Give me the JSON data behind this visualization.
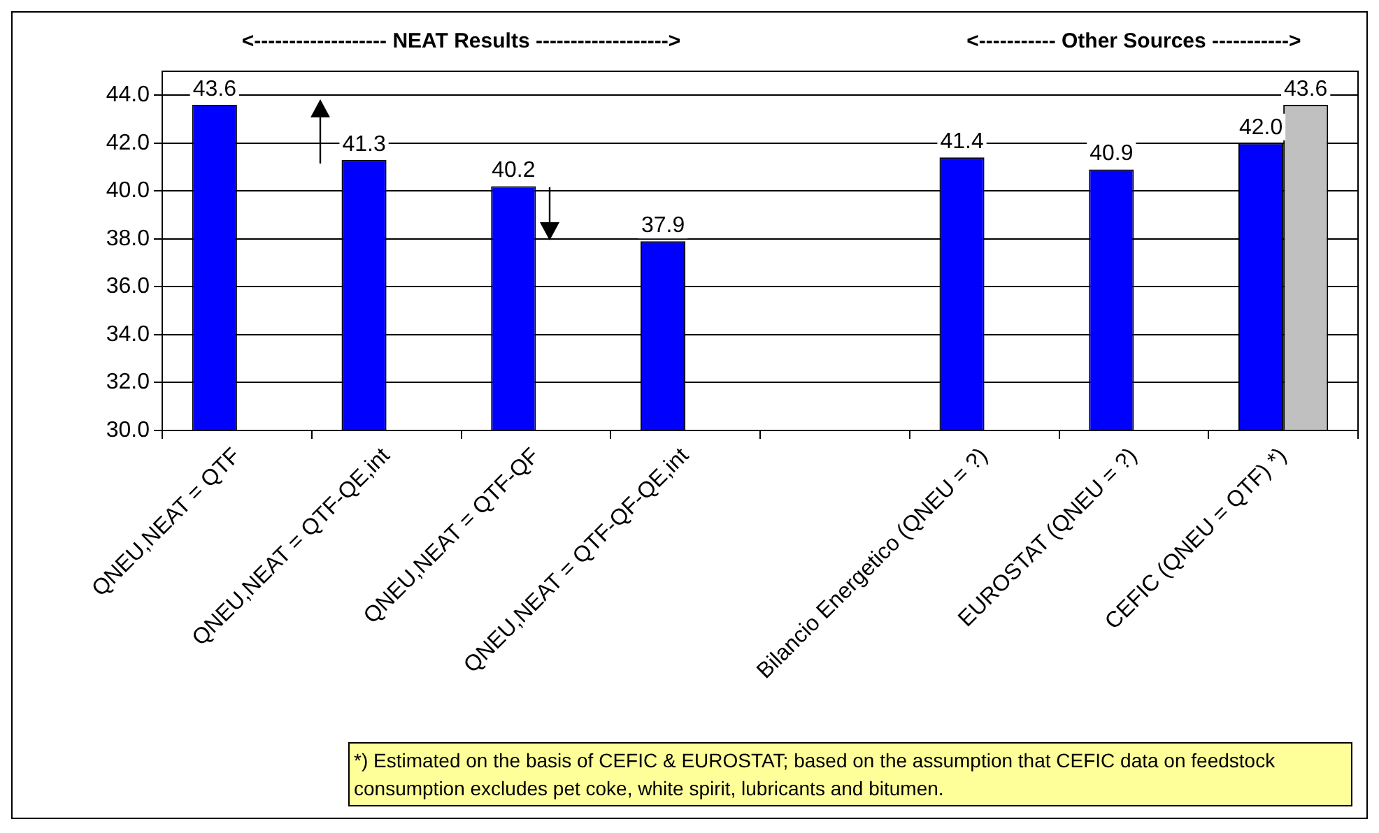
{
  "chart_data": {
    "type": "bar",
    "categories": [
      "QNEU,NEAT = QTF",
      "QNEU,NEAT = QTF-QE,int",
      "QNEU,NEAT = QTF-QF",
      "QNEU,NEAT = QTF-QF-QE,int",
      null,
      "Bilancio Energetico (QNEU = ?)",
      "EUROSTAT (QNEU = ?)",
      "CEFIC (QNEU = QTF) *)"
    ],
    "series": [
      {
        "color": "#0000ff",
        "values": [
          43.6,
          41.3,
          40.2,
          37.9,
          null,
          41.4,
          40.9,
          42.0
        ],
        "value_labels": [
          "43.6",
          "41.3",
          "40.2",
          "37.9",
          null,
          "41.4",
          "40.9",
          "42.0"
        ]
      },
      {
        "color": "#c0c0c0",
        "values": [
          null,
          null,
          null,
          null,
          null,
          null,
          null,
          43.6
        ],
        "value_labels": [
          null,
          null,
          null,
          null,
          null,
          null,
          null,
          "43.6"
        ]
      }
    ],
    "ylim": [
      30,
      45
    ],
    "yticks": [
      {
        "value": 30,
        "label": "30.0"
      },
      {
        "value": 32,
        "label": "32.0"
      },
      {
        "value": 34,
        "label": "34.0"
      },
      {
        "value": 36,
        "label": "36.0"
      },
      {
        "value": 38,
        "label": "38.0"
      },
      {
        "value": 40,
        "label": "40.0"
      },
      {
        "value": 42,
        "label": "42.0"
      },
      {
        "value": 44,
        "label": "44.0"
      }
    ],
    "grid": "y",
    "legend": false,
    "annotations": [
      "<------------------- NEAT Results ------------------->",
      "<----------- Other Sources ----------->",
      "*) Estimated on the basis of CEFIC & EUROSTAT; based on the assumption that CEFIC data on feedstock consumption excludes pet coke, white spirit, lubricants and bitumen."
    ]
  }
}
